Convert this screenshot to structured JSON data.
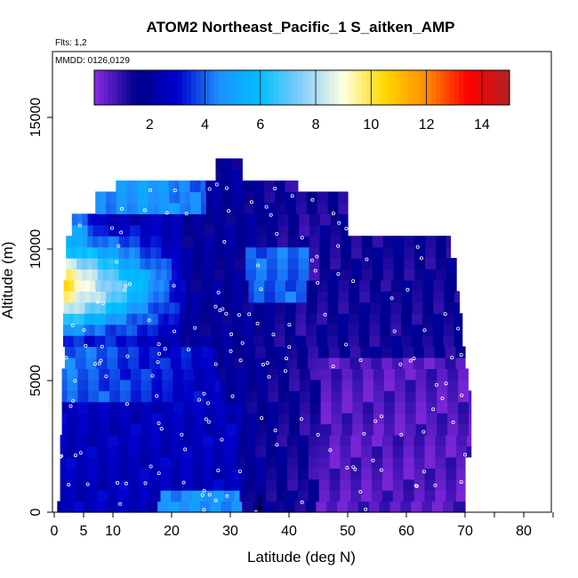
{
  "chart_data": {
    "type": "heatmap",
    "title": "ATOM2 Northeast_Pacific_1 S_aitken_AMP",
    "flights_label": "Flts: 1,2",
    "dates_label": "MMDD: 0126,0129",
    "xlabel": "Latitude (deg N)",
    "ylabel": "Altitude (m)",
    "xlim": [
      0,
      85
    ],
    "ylim": [
      0,
      17500
    ],
    "x_ticks": [
      0,
      5,
      10,
      20,
      30,
      40,
      50,
      60,
      70,
      80
    ],
    "x_ticks_unlabeled": [
      75,
      85
    ],
    "y_ticks": [
      0,
      5000,
      10000,
      15000
    ],
    "colorbar": {
      "range": [
        0,
        15
      ],
      "ticks": [
        2,
        4,
        6,
        8,
        10,
        12,
        14
      ]
    },
    "marker_latitude": 35,
    "colors": {
      "axis": "#000000",
      "marker": "#000000",
      "scale": [
        "#8a2be2",
        "#00008b",
        "#0000cd",
        "#1e90ff",
        "#00bfff",
        "#87cefa",
        "#ffffe0",
        "#ffd700",
        "#ff8c00",
        "#ff0000",
        "#b22222"
      ]
    }
  }
}
